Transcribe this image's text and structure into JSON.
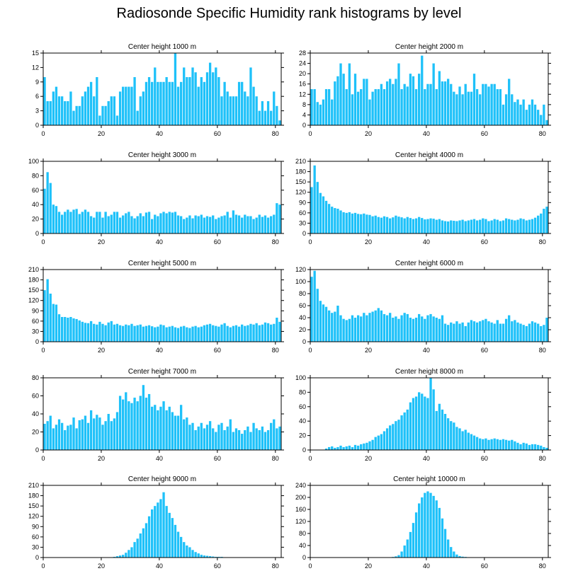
{
  "title": "Radiosonde Specific Humidity rank histograms by level",
  "bar_color": "#1ec1f9",
  "chart_data": [
    {
      "type": "bar",
      "title": "Center height 1000 m",
      "xlim": [
        0,
        82
      ],
      "ylim": [
        0,
        15
      ],
      "xticks": [
        0,
        20,
        40,
        60,
        80
      ],
      "yticks": [
        0,
        3,
        6,
        9,
        12,
        15
      ],
      "values": [
        10,
        5,
        5,
        7,
        8,
        6,
        6,
        5,
        5,
        7,
        3,
        4,
        4,
        6,
        7,
        8,
        9,
        6,
        10,
        2,
        4,
        4,
        5,
        6,
        6,
        2,
        7,
        8,
        8,
        8,
        8,
        10,
        3,
        6,
        7,
        9,
        10,
        9,
        12,
        9,
        9,
        9,
        10,
        9,
        9,
        15,
        8,
        9,
        12,
        10,
        10,
        12,
        11,
        8,
        10,
        9,
        11,
        13,
        11,
        12,
        10,
        6,
        9,
        7,
        6,
        6,
        6,
        9,
        9,
        7,
        6,
        12,
        8,
        6,
        3,
        5,
        3,
        5,
        3,
        7,
        4,
        1
      ]
    },
    {
      "type": "bar",
      "title": "Center height 2000 m",
      "xlim": [
        0,
        82
      ],
      "ylim": [
        0,
        28
      ],
      "xticks": [
        0,
        20,
        40,
        60,
        80
      ],
      "yticks": [
        0,
        4,
        8,
        12,
        16,
        20,
        24,
        28
      ],
      "values": [
        14,
        14,
        9,
        8,
        10,
        14,
        14,
        10,
        17,
        19,
        24,
        20,
        14,
        24,
        12,
        20,
        13,
        14,
        18,
        18,
        10,
        13,
        14,
        14,
        16,
        14,
        17,
        18,
        16,
        18,
        24,
        14,
        16,
        15,
        20,
        19,
        14,
        20,
        27,
        14,
        16,
        16,
        24,
        14,
        21,
        17,
        17,
        18,
        16,
        13,
        12,
        15,
        12,
        16,
        13,
        13,
        20,
        14,
        12,
        16,
        16,
        15,
        16,
        16,
        14,
        14,
        8,
        12,
        18,
        12,
        9,
        10,
        8,
        10,
        6,
        8,
        10,
        8,
        6,
        4,
        8,
        2
      ]
    },
    {
      "type": "bar",
      "title": "Center height 3000 m",
      "xlim": [
        0,
        82
      ],
      "ylim": [
        0,
        100
      ],
      "xticks": [
        0,
        20,
        40,
        60,
        80
      ],
      "yticks": [
        0,
        20,
        40,
        60,
        80,
        100
      ],
      "values": [
        62,
        85,
        70,
        40,
        38,
        30,
        26,
        30,
        33,
        30,
        33,
        34,
        27,
        30,
        33,
        30,
        24,
        22,
        30,
        30,
        22,
        30,
        24,
        26,
        30,
        30,
        22,
        25,
        28,
        30,
        24,
        21,
        24,
        28,
        24,
        29,
        30,
        20,
        26,
        24,
        28,
        30,
        28,
        30,
        29,
        30,
        25,
        24,
        20,
        22,
        25,
        21,
        25,
        24,
        26,
        22,
        24,
        23,
        25,
        20,
        22,
        24,
        25,
        30,
        22,
        32,
        26,
        25,
        22,
        26,
        24,
        24,
        20,
        22,
        26,
        23,
        25,
        22,
        24,
        26,
        42,
        40
      ]
    },
    {
      "type": "bar",
      "title": "Center height 4000 m",
      "xlim": [
        0,
        82
      ],
      "ylim": [
        0,
        210
      ],
      "xticks": [
        0,
        20,
        40,
        60,
        80
      ],
      "yticks": [
        0,
        30,
        60,
        90,
        120,
        150,
        180,
        210
      ],
      "values": [
        135,
        198,
        150,
        118,
        108,
        95,
        86,
        78,
        74,
        72,
        67,
        62,
        60,
        62,
        58,
        60,
        57,
        56,
        58,
        55,
        54,
        50,
        52,
        48,
        46,
        50,
        48,
        44,
        47,
        52,
        49,
        47,
        44,
        48,
        45,
        42,
        44,
        48,
        45,
        41,
        42,
        44,
        43,
        40,
        42,
        38,
        36,
        35,
        38,
        37,
        36,
        38,
        40,
        36,
        38,
        40,
        42,
        38,
        40,
        44,
        42,
        36,
        38,
        42,
        40,
        36,
        38,
        44,
        42,
        40,
        38,
        40,
        44,
        42,
        38,
        40,
        42,
        46,
        52,
        58,
        72,
        78
      ]
    },
    {
      "type": "bar",
      "title": "Center height 5000 m",
      "xlim": [
        0,
        82
      ],
      "ylim": [
        0,
        210
      ],
      "xticks": [
        0,
        20,
        40,
        60,
        80
      ],
      "yticks": [
        0,
        30,
        60,
        90,
        120,
        150,
        180,
        210
      ],
      "values": [
        150,
        182,
        140,
        110,
        108,
        80,
        72,
        72,
        70,
        72,
        68,
        66,
        62,
        58,
        55,
        54,
        60,
        52,
        50,
        58,
        52,
        48,
        56,
        60,
        50,
        52,
        48,
        46,
        50,
        48,
        52,
        46,
        48,
        50,
        44,
        46,
        48,
        45,
        42,
        44,
        50,
        48,
        42,
        44,
        46,
        42,
        40,
        44,
        46,
        42,
        40,
        44,
        46,
        42,
        44,
        48,
        50,
        52,
        48,
        46,
        44,
        50,
        54,
        46,
        42,
        46,
        48,
        44,
        50,
        46,
        48,
        52,
        50,
        54,
        48,
        50,
        56,
        54,
        50,
        52,
        70,
        58
      ]
    },
    {
      "type": "bar",
      "title": "Center height 6000 m",
      "xlim": [
        0,
        82
      ],
      "ylim": [
        0,
        120
      ],
      "xticks": [
        0,
        20,
        40,
        60,
        80
      ],
      "yticks": [
        0,
        20,
        40,
        60,
        80,
        100,
        120
      ],
      "values": [
        108,
        118,
        88,
        68,
        62,
        58,
        52,
        48,
        50,
        60,
        44,
        38,
        36,
        38,
        44,
        40,
        44,
        42,
        48,
        44,
        48,
        50,
        52,
        56,
        52,
        46,
        44,
        48,
        40,
        42,
        38,
        44,
        48,
        46,
        40,
        38,
        40,
        46,
        42,
        38,
        44,
        46,
        42,
        40,
        38,
        44,
        30,
        28,
        32,
        30,
        34,
        30,
        32,
        26,
        32,
        36,
        34,
        32,
        34,
        36,
        38,
        34,
        32,
        30,
        36,
        30,
        30,
        38,
        44,
        34,
        36,
        32,
        30,
        28,
        26,
        30,
        34,
        32,
        30,
        26,
        28,
        40
      ]
    },
    {
      "type": "bar",
      "title": "Center height 7000 m",
      "xlim": [
        0,
        82
      ],
      "ylim": [
        0,
        80
      ],
      "xticks": [
        0,
        20,
        40,
        60,
        80
      ],
      "yticks": [
        0,
        20,
        40,
        60,
        80
      ],
      "values": [
        29,
        32,
        38,
        24,
        28,
        34,
        30,
        22,
        27,
        28,
        36,
        24,
        33,
        34,
        38,
        30,
        44,
        35,
        39,
        36,
        28,
        32,
        40,
        32,
        35,
        42,
        60,
        56,
        64,
        54,
        52,
        58,
        54,
        60,
        72,
        58,
        62,
        48,
        50,
        44,
        48,
        54,
        44,
        48,
        42,
        38,
        38,
        50,
        34,
        36,
        28,
        30,
        22,
        26,
        30,
        24,
        28,
        32,
        24,
        20,
        28,
        30,
        22,
        26,
        34,
        20,
        24,
        22,
        18,
        22,
        26,
        20,
        30,
        24,
        22,
        26,
        20,
        22,
        30,
        34,
        24,
        26
      ]
    },
    {
      "type": "bar",
      "title": "Center height 8000 m",
      "xlim": [
        0,
        82
      ],
      "ylim": [
        0,
        100
      ],
      "xticks": [
        0,
        20,
        40,
        60,
        80
      ],
      "yticks": [
        0,
        20,
        40,
        60,
        80,
        100
      ],
      "values": [
        0,
        0,
        0,
        0,
        0,
        2,
        4,
        5,
        3,
        4,
        6,
        4,
        5,
        6,
        4,
        7,
        6,
        8,
        9,
        10,
        12,
        14,
        18,
        20,
        22,
        26,
        30,
        34,
        36,
        40,
        42,
        48,
        52,
        56,
        66,
        72,
        74,
        80,
        78,
        74,
        72,
        100,
        84,
        54,
        64,
        56,
        50,
        44,
        40,
        38,
        32,
        30,
        26,
        28,
        24,
        22,
        20,
        18,
        16,
        15,
        16,
        14,
        15,
        16,
        15,
        14,
        15,
        14,
        13,
        14,
        12,
        10,
        8,
        10,
        9,
        7,
        8,
        8,
        7,
        6,
        4,
        3
      ]
    },
    {
      "type": "bar",
      "title": "Center height 9000 m",
      "xlim": [
        0,
        82
      ],
      "ylim": [
        0,
        210
      ],
      "xticks": [
        0,
        20,
        40,
        60,
        80
      ],
      "yticks": [
        0,
        30,
        60,
        90,
        120,
        150,
        180,
        210
      ],
      "values": [
        0,
        0,
        0,
        0,
        0,
        0,
        0,
        0,
        0,
        0,
        0,
        0,
        0,
        0,
        0,
        0,
        0,
        0,
        0,
        0,
        0,
        0,
        0,
        1,
        2,
        4,
        6,
        8,
        14,
        22,
        30,
        45,
        55,
        70,
        85,
        100,
        120,
        140,
        150,
        160,
        170,
        190,
        150,
        130,
        115,
        95,
        75,
        60,
        45,
        35,
        30,
        22,
        16,
        12,
        8,
        6,
        5,
        4,
        3,
        2,
        2,
        2,
        1,
        1,
        1,
        1,
        1,
        1,
        1,
        1,
        1,
        1,
        0,
        0,
        0,
        0,
        0,
        0,
        0,
        0,
        0,
        0
      ]
    },
    {
      "type": "bar",
      "title": "Center height 10000 m",
      "xlim": [
        0,
        82
      ],
      "ylim": [
        0,
        240
      ],
      "xticks": [
        0,
        20,
        40,
        60,
        80
      ],
      "yticks": [
        0,
        40,
        80,
        120,
        160,
        200,
        240
      ],
      "values": [
        0,
        0,
        0,
        0,
        0,
        0,
        0,
        0,
        0,
        0,
        0,
        0,
        0,
        0,
        0,
        0,
        0,
        0,
        0,
        0,
        0,
        0,
        0,
        0,
        0,
        0,
        0,
        1,
        2,
        4,
        8,
        20,
        40,
        60,
        85,
        115,
        150,
        180,
        200,
        215,
        220,
        215,
        205,
        190,
        165,
        130,
        95,
        60,
        35,
        20,
        10,
        5,
        3,
        2,
        1,
        1,
        0,
        0,
        0,
        0,
        0,
        0,
        0,
        0,
        0,
        0,
        0,
        0,
        0,
        0,
        0,
        0,
        0,
        0,
        0,
        0,
        0,
        0,
        0,
        0,
        0,
        0
      ]
    }
  ]
}
